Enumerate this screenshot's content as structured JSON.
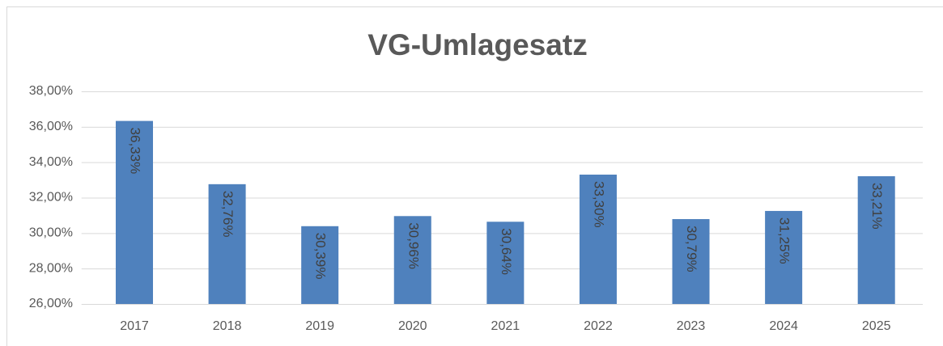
{
  "chart_data": {
    "type": "bar",
    "title": "VG-Umlagesatz",
    "categories": [
      "2017",
      "2018",
      "2019",
      "2020",
      "2021",
      "2022",
      "2023",
      "2024",
      "2025"
    ],
    "values": [
      36.33,
      32.76,
      30.39,
      30.96,
      30.64,
      33.3,
      30.79,
      31.25,
      33.21
    ],
    "value_labels": [
      "36,33%",
      "32,76%",
      "30,39%",
      "30,96%",
      "30,64%",
      "33,30%",
      "30,79%",
      "31,25%",
      "33,21%"
    ],
    "color": "#4f81bd",
    "ylim": [
      26,
      38
    ],
    "yticks": [
      {
        "value": 26,
        "label": "26,00%"
      },
      {
        "value": 28,
        "label": "28,00%"
      },
      {
        "value": 30,
        "label": "30,00%"
      },
      {
        "value": 32,
        "label": "32,00%"
      },
      {
        "value": 34,
        "label": "34,00%"
      },
      {
        "value": 36,
        "label": "36,00%"
      },
      {
        "value": 38,
        "label": "38,00%"
      }
    ],
    "grid": true
  }
}
